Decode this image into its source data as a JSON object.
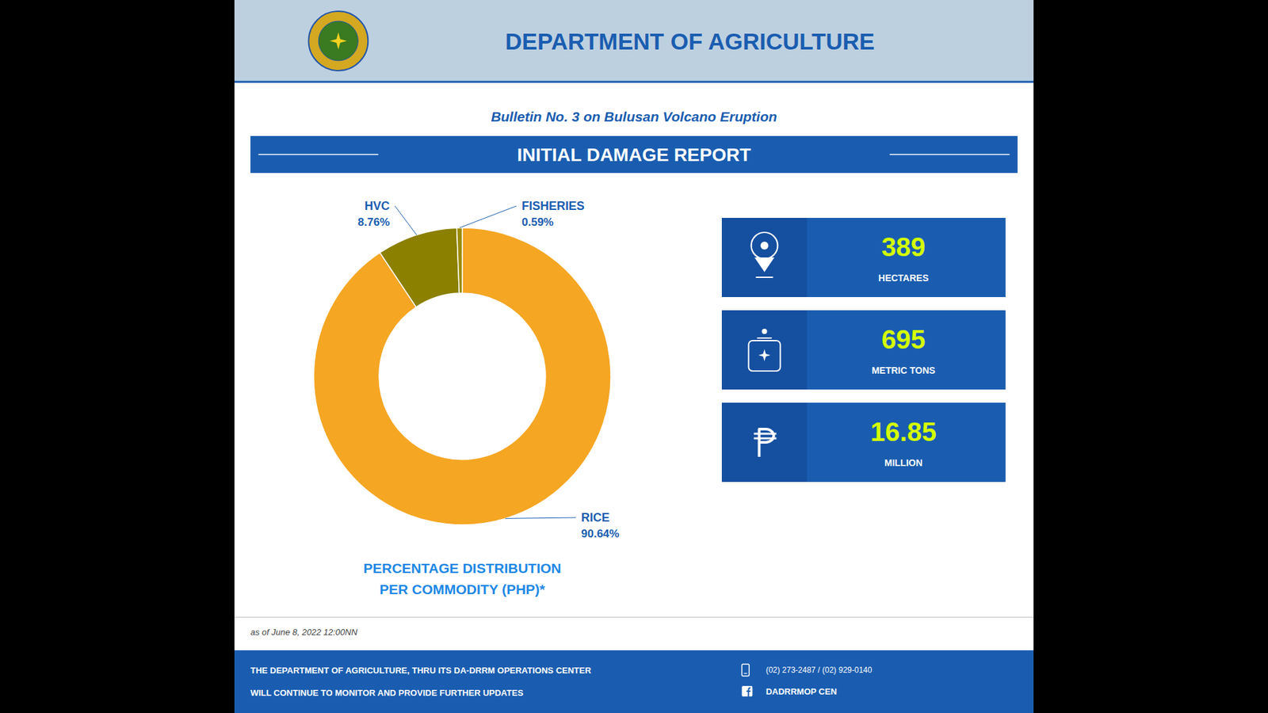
{
  "chart_data": {
    "type": "pie",
    "title": "PERCENTAGE DISTRIBUTION",
    "subtitle": "PER COMMODITY (PHP)*",
    "categories": [
      "RICE",
      "HVC",
      "FISHERIES"
    ],
    "values": [
      90.64,
      8.76,
      0.59
    ],
    "value_labels": [
      "90.64%",
      "8.76%",
      "0.59%"
    ],
    "colors": [
      "#F5A623",
      "#8B8000",
      "#9B8B00"
    ],
    "data_labels": true
  },
  "page": {
    "header": "DEPARTMENT OF AGRICULTURE",
    "bulletin": "Bulletin No. 3 on Bulusan Volcano Eruption",
    "banner": "INITIAL DAMAGE REPORT",
    "stats": [
      {
        "value": "389",
        "label": "HECTARES"
      },
      {
        "value": "695",
        "label": "METRIC TONS"
      },
      {
        "value": "16.85",
        "label": "MILLION"
      }
    ],
    "footer_date": "as of June 8, 2022 12:00NN",
    "footer_lines": [
      "THE DEPARTMENT OF AGRICULTURE, THRU ITS DA-DRRM OPERATIONS CENTER",
      "WILL CONTINUE TO MONITOR AND PROVIDE FURTHER UPDATES"
    ],
    "contacts": [
      "(02) 273-2487 / (02) 929-0140",
      "DADRRMOP CEN"
    ]
  }
}
